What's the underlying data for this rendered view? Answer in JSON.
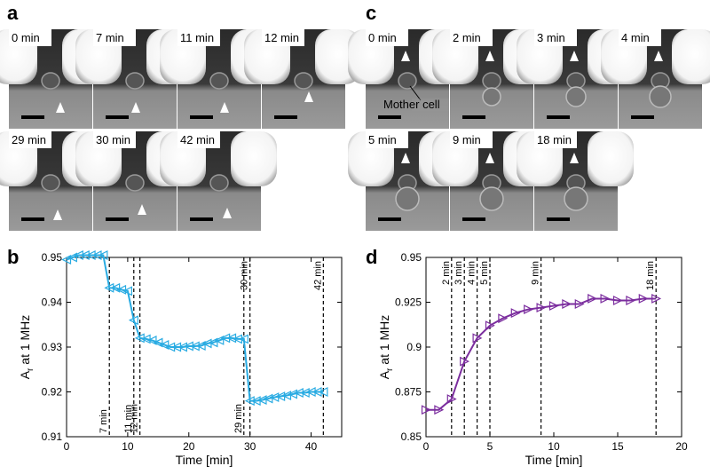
{
  "panels": {
    "a": {
      "label": "a",
      "frames": [
        "0 min",
        "7 min",
        "11 min",
        "12 min",
        "29 min",
        "30 min",
        "42 min"
      ]
    },
    "c": {
      "label": "c",
      "frames": [
        "0 min",
        "2 min",
        "3 min",
        "4 min",
        "5 min",
        "9 min",
        "18 min"
      ],
      "annotation": "Mother cell"
    }
  },
  "chart_data": [
    {
      "type": "line",
      "label": "b",
      "xlabel": "Time [min]",
      "ylabel": {
        "main": "A",
        "sub": "r",
        "rest": " at 1 MHz"
      },
      "x": [
        0,
        1,
        2,
        3,
        4,
        5,
        6,
        7,
        8,
        9,
        10,
        11,
        12,
        13,
        14,
        15,
        16,
        17,
        18,
        19,
        20,
        21,
        22,
        23,
        24,
        25,
        26,
        27,
        28,
        29,
        30,
        31,
        32,
        33,
        34,
        35,
        36,
        37,
        38,
        39,
        40,
        41,
        42
      ],
      "values": [
        0.9495,
        0.95,
        0.9505,
        0.9505,
        0.9505,
        0.9505,
        0.9505,
        0.9432,
        0.9432,
        0.9428,
        0.9425,
        0.936,
        0.932,
        0.9318,
        0.9315,
        0.931,
        0.9305,
        0.93,
        0.93,
        0.93,
        0.9302,
        0.9302,
        0.9303,
        0.9308,
        0.931,
        0.9315,
        0.932,
        0.932,
        0.9318,
        0.9318,
        0.918,
        0.918,
        0.9182,
        0.9185,
        0.9188,
        0.919,
        0.9192,
        0.9195,
        0.9198,
        0.9198,
        0.92,
        0.92,
        0.92
      ],
      "color": "#29abe2",
      "marker": "triangle-left",
      "xlim": [
        0,
        45
      ],
      "xticks": [
        0,
        10,
        20,
        30,
        40
      ],
      "ylim": [
        0.91,
        0.95
      ],
      "yticks": [
        0.91,
        0.92,
        0.93,
        0.94,
        0.95
      ],
      "vlines": [
        {
          "x": 7,
          "label": "7 min",
          "position": "bottom"
        },
        {
          "x": 11,
          "label": "11 min",
          "position": "bottom"
        },
        {
          "x": 12,
          "label": "12 min",
          "position": "bottom"
        },
        {
          "x": 29,
          "label": "29 min",
          "position": "bottom"
        },
        {
          "x": 30,
          "label": "30 min",
          "position": "top"
        },
        {
          "x": 42,
          "label": "42 min",
          "position": "top"
        }
      ]
    },
    {
      "type": "line",
      "label": "d",
      "xlabel": "Time [min]",
      "ylabel": {
        "main": "A",
        "sub": "r",
        "rest": " at 1 MHz"
      },
      "x": [
        0,
        1,
        2,
        3,
        4,
        5,
        6,
        7,
        8,
        9,
        10,
        11,
        12,
        13,
        14,
        15,
        16,
        17,
        18
      ],
      "values": [
        0.865,
        0.865,
        0.871,
        0.892,
        0.905,
        0.912,
        0.916,
        0.919,
        0.921,
        0.922,
        0.923,
        0.924,
        0.924,
        0.927,
        0.927,
        0.926,
        0.926,
        0.927,
        0.927
      ],
      "color": "#7b2d9e",
      "marker": "triangle-right",
      "xlim": [
        0,
        20
      ],
      "xticks": [
        0,
        5,
        10,
        15,
        20
      ],
      "ylim": [
        0.85,
        0.95
      ],
      "yticks": [
        0.85,
        0.875,
        0.9,
        0.925,
        0.95
      ],
      "vlines": [
        {
          "x": 2,
          "label": "2 min",
          "position": "top"
        },
        {
          "x": 3,
          "label": "3 min",
          "position": "top"
        },
        {
          "x": 4,
          "label": "4 min",
          "position": "top"
        },
        {
          "x": 5,
          "label": "5 min",
          "position": "top"
        },
        {
          "x": 9,
          "label": "9 min",
          "position": "top"
        },
        {
          "x": 18,
          "label": "18 min",
          "position": "top"
        }
      ]
    }
  ]
}
